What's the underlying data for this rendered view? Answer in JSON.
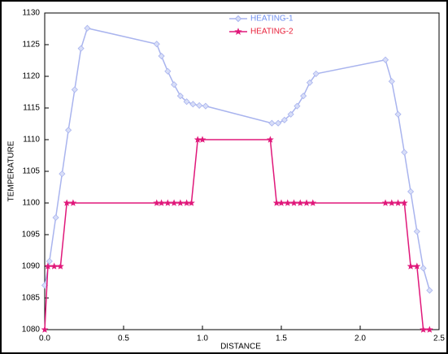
{
  "chart_data": {
    "type": "line",
    "xlabel": "DISTANCE",
    "ylabel": "TEMPERATURE",
    "legend": "top",
    "xlim": [
      0,
      2.5
    ],
    "xticks": [
      {
        "value": 0,
        "label": "0.0"
      },
      0.5,
      {
        "value": 1,
        "label": "1.0"
      },
      1.5,
      {
        "value": 2,
        "label": "2.0"
      },
      2.5
    ],
    "ylim": [
      1080,
      1130
    ],
    "yticks": [
      1080,
      1085,
      1090,
      1095,
      1100,
      1105,
      1110,
      1115,
      1120,
      1125,
      1130
    ],
    "series": [
      {
        "name": "HEATING-1",
        "color": "#a9b4ee",
        "label_color": "#6f8ff0",
        "marker": "diamond",
        "x": [
          0,
          0.03,
          0.07,
          0.11,
          0.15,
          0.19,
          0.23,
          0.27,
          0.71,
          0.74,
          0.78,
          0.82,
          0.86,
          0.9,
          0.94,
          0.98,
          1.02,
          1.44,
          1.48,
          1.52,
          1.56,
          1.6,
          1.64,
          1.68,
          1.72,
          2.16,
          2.2,
          2.24,
          2.28,
          2.32,
          2.36,
          2.4,
          2.44
        ],
        "values": [
          1087,
          1090.8,
          1097.7,
          1104.6,
          1111.5,
          1117.9,
          1124.4,
          1127.6,
          1125.1,
          1123.2,
          1120.8,
          1118.7,
          1116.9,
          1116,
          1115.6,
          1115.4,
          1115.3,
          1112.6,
          1112.6,
          1113.1,
          1114,
          1115.3,
          1116.9,
          1119,
          1120.4,
          1122.6,
          1119.2,
          1114,
          1108,
          1101.8,
          1095.5,
          1089.7,
          1086.2
        ]
      },
      {
        "name": "HEATING-2",
        "color": "#e0187a",
        "label_color": "#e8203a",
        "marker": "star",
        "x": [
          0,
          0.02,
          0.06,
          0.1,
          0.14,
          0.18,
          0.71,
          0.74,
          0.78,
          0.82,
          0.86,
          0.9,
          0.93,
          0.97,
          1.0,
          1.43,
          1.47,
          1.5,
          1.54,
          1.58,
          1.62,
          1.66,
          1.7,
          2.16,
          2.2,
          2.24,
          2.28,
          2.32,
          2.36,
          2.4,
          2.44
        ],
        "values": [
          1080,
          1090,
          1090,
          1090,
          1100,
          1100,
          1100,
          1100,
          1100,
          1100,
          1100,
          1100,
          1100,
          1110,
          1110,
          1110,
          1100,
          1100,
          1100,
          1100,
          1100,
          1100,
          1100,
          1100,
          1100,
          1100,
          1100,
          1090,
          1090,
          1080,
          1080
        ]
      }
    ]
  }
}
